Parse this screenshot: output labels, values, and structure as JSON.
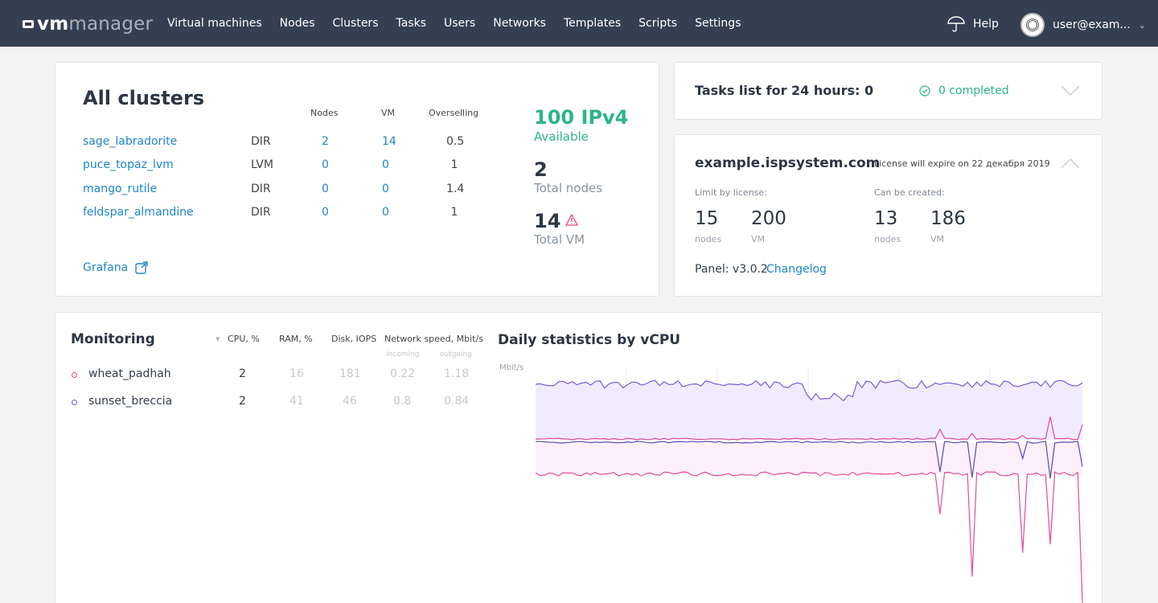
{
  "header": {
    "logo_vm": "vm",
    "logo_manager": "manager",
    "nav": [
      "Virtual machines",
      "Nodes",
      "Clusters",
      "Tasks",
      "Users",
      "Networks",
      "Templates",
      "Scripts",
      "Settings"
    ],
    "help_label": "Help",
    "user_label": "user@exam..."
  },
  "clusters": {
    "title": "All clusters",
    "col_nodes": "Nodes",
    "col_vm": "VM",
    "col_overselling": "Overselling",
    "rows": [
      {
        "name": "sage_labradorite",
        "type": "DIR",
        "nodes": "2",
        "vm": "14",
        "overselling": "0.5"
      },
      {
        "name": "puce_topaz_lvm",
        "type": "LVM",
        "nodes": "0",
        "vm": "0",
        "overselling": "1"
      },
      {
        "name": "mango_rutile",
        "type": "DIR",
        "nodes": "0",
        "vm": "0",
        "overselling": "1.4"
      },
      {
        "name": "feldspar_almandine",
        "type": "DIR",
        "nodes": "0",
        "vm": "0",
        "overselling": "1"
      }
    ],
    "ipv4_value": "100 IPv4",
    "ipv4_label": "Available",
    "nodes_value": "2",
    "nodes_label": "Total nodes",
    "vm_value": "14",
    "vm_label": "Total VM",
    "grafana_label": "Grafana"
  },
  "tasks": {
    "title": "Tasks list for 24 hours: 0",
    "completed": "0 completed"
  },
  "license": {
    "host": "example.ispsystem.com",
    "expire": "License will expire on 22 декабря 2019",
    "limit_label": "Limit by license:",
    "can_label": "Can be created:",
    "limit_nodes": "15",
    "limit_vm": "200",
    "can_nodes": "13",
    "can_vm": "186",
    "unit_nodes": "nodes",
    "unit_vm": "VM",
    "panel": "Panel: v3.0.2",
    "changelog": "Changelog"
  },
  "monitoring": {
    "title": "Monitoring",
    "col_cpu": "CPU, %",
    "col_ram": "RAM, %",
    "col_disk": "Disk, IOPS",
    "col_net": "Network speed, Mbit/s",
    "col_in": "incoming",
    "col_out": "outgoing",
    "rows": [
      {
        "name": "wheat_padhah",
        "cpu": "2",
        "ram": "16",
        "disk": "181",
        "in": "0.22",
        "out": "1.18"
      },
      {
        "name": "sunset_breccia",
        "cpu": "2",
        "ram": "41",
        "disk": "46",
        "in": "0.8",
        "out": "0.84"
      }
    ],
    "chart_title": "Daily statistics by vCPU",
    "chart_unit": "Mbit/s",
    "colors": {
      "incoming": "#7b5bd6",
      "outgoing": "#e24a9a",
      "accent": "#2cb587",
      "link": "#1f86c6"
    }
  }
}
